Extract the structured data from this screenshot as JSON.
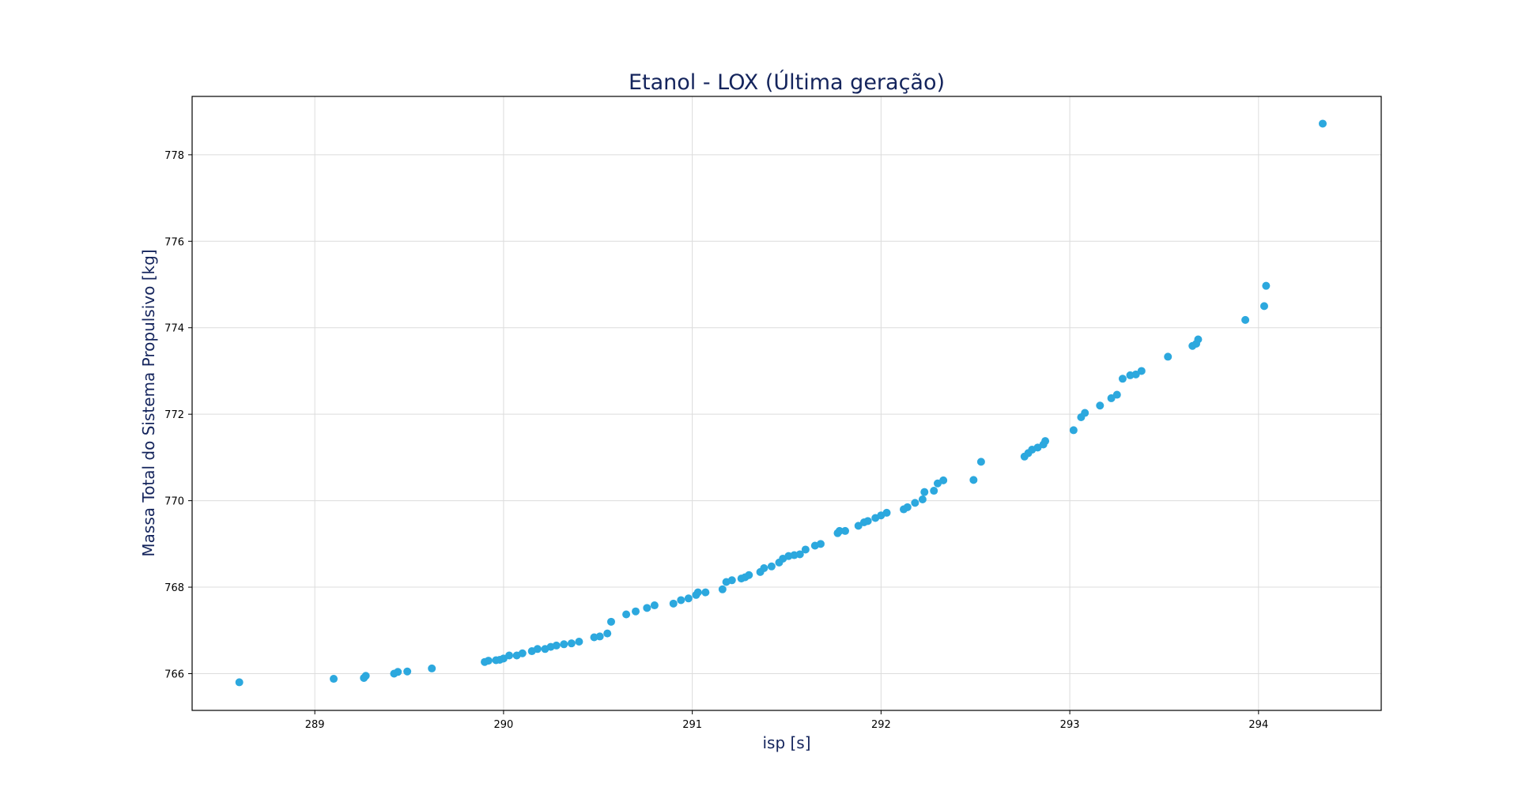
{
  "chart_data": {
    "type": "scatter",
    "title": "Etanol - LOX (Última geração)",
    "xlabel": "isp [s]",
    "ylabel": "Massa Total do Sistema Propulsivo [kg]",
    "xlim": [
      288.35,
      294.65
    ],
    "ylim": [
      765.15,
      779.35
    ],
    "xticks": [
      289,
      290,
      291,
      292,
      293,
      294
    ],
    "yticks": [
      766,
      768,
      770,
      772,
      774,
      776,
      778
    ],
    "grid": true,
    "marker_color": "#2ca8de",
    "series": [
      {
        "points": [
          [
            288.6,
            765.8
          ],
          [
            289.1,
            765.88
          ],
          [
            289.26,
            765.9
          ],
          [
            289.27,
            765.95
          ],
          [
            289.42,
            766.0
          ],
          [
            289.44,
            766.04
          ],
          [
            289.49,
            766.05
          ],
          [
            289.62,
            766.12
          ],
          [
            289.9,
            766.27
          ],
          [
            289.92,
            766.3
          ],
          [
            289.96,
            766.31
          ],
          [
            289.98,
            766.32
          ],
          [
            290.0,
            766.35
          ],
          [
            290.03,
            766.42
          ],
          [
            290.07,
            766.42
          ],
          [
            290.1,
            766.47
          ],
          [
            290.15,
            766.52
          ],
          [
            290.18,
            766.57
          ],
          [
            290.22,
            766.57
          ],
          [
            290.25,
            766.62
          ],
          [
            290.28,
            766.65
          ],
          [
            290.32,
            766.68
          ],
          [
            290.36,
            766.7
          ],
          [
            290.4,
            766.74
          ],
          [
            290.48,
            766.84
          ],
          [
            290.51,
            766.86
          ],
          [
            290.55,
            766.93
          ],
          [
            290.57,
            767.2
          ],
          [
            290.65,
            767.37
          ],
          [
            290.7,
            767.44
          ],
          [
            290.76,
            767.52
          ],
          [
            290.8,
            767.58
          ],
          [
            290.9,
            767.62
          ],
          [
            290.94,
            767.7
          ],
          [
            290.98,
            767.74
          ],
          [
            291.02,
            767.82
          ],
          [
            291.03,
            767.88
          ],
          [
            291.07,
            767.88
          ],
          [
            291.16,
            767.95
          ],
          [
            291.18,
            768.12
          ],
          [
            291.21,
            768.16
          ],
          [
            291.26,
            768.2
          ],
          [
            291.28,
            768.23
          ],
          [
            291.3,
            768.28
          ],
          [
            291.36,
            768.35
          ],
          [
            291.38,
            768.44
          ],
          [
            291.42,
            768.48
          ],
          [
            291.46,
            768.57
          ],
          [
            291.48,
            768.66
          ],
          [
            291.51,
            768.72
          ],
          [
            291.54,
            768.74
          ],
          [
            291.57,
            768.76
          ],
          [
            291.6,
            768.87
          ],
          [
            291.65,
            768.96
          ],
          [
            291.68,
            769.0
          ],
          [
            291.77,
            769.25
          ],
          [
            291.78,
            769.3
          ],
          [
            291.81,
            769.3
          ],
          [
            291.88,
            769.42
          ],
          [
            291.91,
            769.5
          ],
          [
            291.93,
            769.53
          ],
          [
            291.97,
            769.6
          ],
          [
            292.0,
            769.66
          ],
          [
            292.03,
            769.72
          ],
          [
            292.12,
            769.8
          ],
          [
            292.14,
            769.85
          ],
          [
            292.18,
            769.95
          ],
          [
            292.22,
            770.03
          ],
          [
            292.23,
            770.2
          ],
          [
            292.28,
            770.23
          ],
          [
            292.3,
            770.4
          ],
          [
            292.33,
            770.47
          ],
          [
            292.49,
            770.48
          ],
          [
            292.53,
            770.9
          ],
          [
            292.76,
            771.02
          ],
          [
            292.78,
            771.1
          ],
          [
            292.8,
            771.18
          ],
          [
            292.83,
            771.23
          ],
          [
            292.86,
            771.3
          ],
          [
            292.87,
            771.38
          ],
          [
            293.02,
            771.63
          ],
          [
            293.06,
            771.93
          ],
          [
            293.08,
            772.03
          ],
          [
            293.16,
            772.2
          ],
          [
            293.22,
            772.37
          ],
          [
            293.25,
            772.45
          ],
          [
            293.28,
            772.82
          ],
          [
            293.32,
            772.9
          ],
          [
            293.35,
            772.92
          ],
          [
            293.38,
            773.0
          ],
          [
            293.52,
            773.33
          ],
          [
            293.65,
            773.58
          ],
          [
            293.67,
            773.63
          ],
          [
            293.68,
            773.73
          ],
          [
            293.93,
            774.18
          ],
          [
            294.03,
            774.5
          ],
          [
            294.04,
            774.97
          ],
          [
            294.34,
            778.72
          ]
        ]
      }
    ]
  }
}
